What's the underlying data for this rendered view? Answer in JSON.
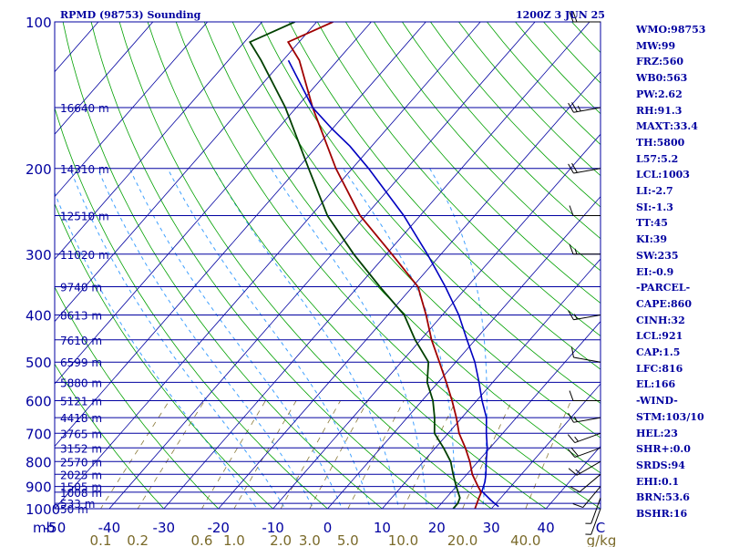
{
  "header": {
    "station": "RPMD (98753) Sounding",
    "datetime": "1200Z  3 JUN 25"
  },
  "colors": {
    "isobar": "#0000a0",
    "isotherm": "#0000a0",
    "dry_adiabat": "#00a000",
    "moist_adiabat": "#3fa0ff",
    "mixing_ratio": "#8a7a3a",
    "temperature": "#a00000",
    "dewpoint": "#004000",
    "parcel": "#0000c0",
    "wind": "#000000",
    "index_text": "#0000a0",
    "axis_text": "#0000a0",
    "mixing_label": "#7a6a2a"
  },
  "chart_data": {
    "type": "line",
    "title": "RPMD (98753) Sounding",
    "subtitle": "1200Z  3 JUN 25",
    "xlabel": "",
    "ylabel": "mb",
    "y_scale": "log",
    "ylim": [
      1000,
      100
    ],
    "xlim": [
      -50,
      50
    ],
    "skew_deg_per_decade": 78,
    "grid": true,
    "y_ticks": [
      100,
      200,
      300,
      400,
      500,
      600,
      700,
      800,
      900,
      1000
    ],
    "x_ticks": [
      -50,
      -40,
      -30,
      -20,
      -10,
      0,
      10,
      20,
      30,
      40
    ],
    "x_tick_labels": [
      "-50",
      "-40",
      "-30",
      "-20",
      "-10",
      "0",
      "10",
      "20",
      "30",
      "40"
    ],
    "x_unit": "C",
    "mixing_ratio_labels": [
      "0.1",
      "0.2",
      "0.6",
      "1.0",
      "2.0",
      "3.0",
      "5.0",
      "10.0",
      "20.0",
      "40.0"
    ],
    "mixing_ratio_values": [
      0.1,
      0.2,
      0.6,
      1.0,
      2.0,
      3.0,
      5.0,
      10.0,
      20.0,
      40.0
    ],
    "mixing_ratio_unit": "g/kg",
    "height_labels": [
      {
        "p": 1000,
        "text": "50 m"
      },
      {
        "p": 975,
        "text": "533 m"
      },
      {
        "p": 925,
        "text": "1008 m"
      },
      {
        "p": 900,
        "text": "1505 m"
      },
      {
        "p": 850,
        "text": "2025 m"
      },
      {
        "p": 800,
        "text": "2570 m"
      },
      {
        "p": 750,
        "text": "3152 m"
      },
      {
        "p": 700,
        "text": "3765 m"
      },
      {
        "p": 650,
        "text": "4418 m"
      },
      {
        "p": 600,
        "text": "5121 m"
      },
      {
        "p": 550,
        "text": "5880 m"
      },
      {
        "p": 500,
        "text": "6599 m"
      },
      {
        "p": 450,
        "text": "7610 m"
      },
      {
        "p": 400,
        "text": "8613 m"
      },
      {
        "p": 350,
        "text": "9740 m"
      },
      {
        "p": 300,
        "text": "11020 m"
      },
      {
        "p": 250,
        "text": "12510 m"
      },
      {
        "p": 200,
        "text": "14310 m"
      },
      {
        "p": 150,
        "text": "16640 m"
      }
    ],
    "series": [
      {
        "kind": "temperature",
        "points": [
          [
            1000,
            27.0
          ],
          [
            950,
            26.0
          ],
          [
            925,
            25.5
          ],
          [
            900,
            24.0
          ],
          [
            850,
            21.0
          ],
          [
            800,
            18.5
          ],
          [
            750,
            15.5
          ],
          [
            700,
            12.0
          ],
          [
            650,
            9.0
          ],
          [
            600,
            5.5
          ],
          [
            550,
            1.5
          ],
          [
            500,
            -3.0
          ],
          [
            450,
            -8.0
          ],
          [
            400,
            -13.0
          ],
          [
            350,
            -19.0
          ],
          [
            300,
            -29.0
          ],
          [
            250,
            -41.0
          ],
          [
            200,
            -53.0
          ],
          [
            150,
            -67.0
          ],
          [
            120,
            -77.0
          ],
          [
            110,
            -82.0
          ],
          [
            100,
            -77.0
          ]
        ]
      },
      {
        "kind": "dewpoint",
        "points": [
          [
            1000,
            23.0
          ],
          [
            975,
            23.0
          ],
          [
            950,
            22.5
          ],
          [
            900,
            20.0
          ],
          [
            850,
            17.5
          ],
          [
            800,
            15.0
          ],
          [
            750,
            11.5
          ],
          [
            700,
            7.5
          ],
          [
            650,
            5.0
          ],
          [
            600,
            2.0
          ],
          [
            550,
            -2.0
          ],
          [
            500,
            -5.0
          ],
          [
            450,
            -11.0
          ],
          [
            400,
            -17.0
          ],
          [
            350,
            -26.0
          ],
          [
            300,
            -36.0
          ],
          [
            250,
            -47.0
          ],
          [
            200,
            -58.0
          ],
          [
            150,
            -72.0
          ],
          [
            120,
            -84.0
          ],
          [
            110,
            -89.0
          ],
          [
            100,
            -84.0
          ]
        ]
      },
      {
        "kind": "parcel",
        "points": [
          [
            990,
            31.0
          ],
          [
            960,
            28.5
          ],
          [
            921,
            25.5
          ],
          [
            880,
            24.5
          ],
          [
            850,
            23.5
          ],
          [
            800,
            21.5
          ],
          [
            750,
            19.5
          ],
          [
            700,
            17.0
          ],
          [
            650,
            14.5
          ],
          [
            600,
            11.0
          ],
          [
            550,
            7.5
          ],
          [
            500,
            3.5
          ],
          [
            450,
            -1.5
          ],
          [
            400,
            -7.0
          ],
          [
            350,
            -14.0
          ],
          [
            300,
            -22.5
          ],
          [
            250,
            -33.0
          ],
          [
            200,
            -47.0
          ],
          [
            180,
            -54.0
          ],
          [
            166,
            -60.0
          ],
          [
            150,
            -67.0
          ],
          [
            120,
            -79.0
          ]
        ]
      }
    ],
    "winds": [
      {
        "p": 1000,
        "dir": 200,
        "spd": 5
      },
      {
        "p": 950,
        "dir": 200,
        "spd": 5
      },
      {
        "p": 900,
        "dir": 220,
        "spd": 10
      },
      {
        "p": 850,
        "dir": 230,
        "spd": 10
      },
      {
        "p": 800,
        "dir": 240,
        "spd": 15
      },
      {
        "p": 750,
        "dir": 250,
        "spd": 20
      },
      {
        "p": 700,
        "dir": 250,
        "spd": 15
      },
      {
        "p": 650,
        "dir": 260,
        "spd": 15
      },
      {
        "p": 600,
        "dir": 270,
        "spd": 10
      },
      {
        "p": 500,
        "dir": 280,
        "spd": 10
      },
      {
        "p": 400,
        "dir": 260,
        "spd": 15
      },
      {
        "p": 300,
        "dir": 270,
        "spd": 15
      },
      {
        "p": 250,
        "dir": 270,
        "spd": 10
      },
      {
        "p": 200,
        "dir": 260,
        "spd": 20
      },
      {
        "p": 150,
        "dir": 260,
        "spd": 25
      },
      {
        "p": 100,
        "dir": 270,
        "spd": 20
      }
    ]
  },
  "indices": [
    "WMO:98753",
    "MW:99",
    "FRZ:560",
    "WB0:563",
    "PW:2.62",
    "RH:91.3",
    "MAXT:33.4",
    "TH:5800",
    "L57:5.2",
    "LCL:1003",
    "LI:-2.7",
    "SI:-1.3",
    "TT:45",
    "KI:39",
    "SW:235",
    "EI:-0.9",
    "-PARCEL-",
    "CAPE:860",
    "CINH:32",
    "LCL:921",
    "CAP:1.5",
    "LFC:816",
    "EL:166",
    "-WIND-",
    "STM:103/10",
    "HEL:23",
    "SHR+:0.0",
    "SRDS:94",
    "EHI:0.1",
    "BRN:53.6",
    "BSHR:16"
  ]
}
